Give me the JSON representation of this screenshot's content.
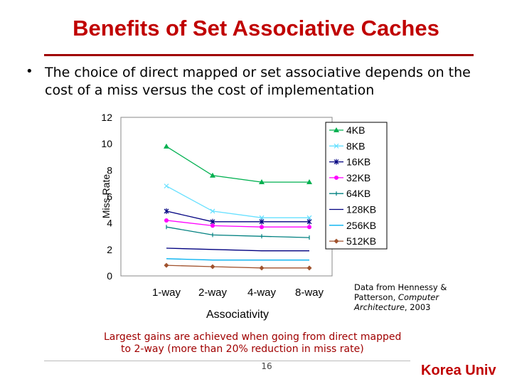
{
  "slide": {
    "title": "Benefits of Set Associative Caches",
    "bullet_marker": "•",
    "bullet_text": "The choice of direct mapped or set associative depends on the cost of a miss versus the cost of implementation",
    "source_line1": "Data from Hennessy &",
    "source_line2_plain": "Patterson, ",
    "source_line2_italic": "Computer",
    "source_line3_italic": "Architecture",
    "source_line3_plain": ", 2003",
    "caption_line1": "Largest gains are achieved when going from direct mapped",
    "caption_line2": "to 2-way (more than 20% reduction in miss rate)",
    "page_number": "16",
    "brand": "Korea Univ"
  },
  "chart_data": {
    "type": "line",
    "categories": [
      "1-way",
      "2-way",
      "4-way",
      "8-way"
    ],
    "xlabel": "Associativity",
    "ylabel": "Miss Rate",
    "ylim": [
      0,
      12
    ],
    "yticks": [
      0,
      2,
      4,
      6,
      8,
      10,
      12
    ],
    "legend_position": "right",
    "grid": false,
    "series": [
      {
        "name": "4KB",
        "values": [
          9.8,
          7.6,
          7.1,
          7.1
        ],
        "color": "#00b050",
        "marker": "triangle"
      },
      {
        "name": "8KB",
        "values": [
          6.8,
          4.9,
          4.4,
          4.4
        ],
        "color": "#66e0ff",
        "marker": "x"
      },
      {
        "name": "16KB",
        "values": [
          4.9,
          4.1,
          4.1,
          4.1
        ],
        "color": "#000080",
        "marker": "star"
      },
      {
        "name": "32KB",
        "values": [
          4.2,
          3.8,
          3.7,
          3.7
        ],
        "color": "#ff00ff",
        "marker": "circle"
      },
      {
        "name": "64KB",
        "values": [
          3.7,
          3.1,
          3.0,
          2.9
        ],
        "color": "#008080",
        "marker": "bar"
      },
      {
        "name": "128KB",
        "values": [
          2.1,
          2.0,
          1.9,
          1.9
        ],
        "color": "#000080",
        "marker": "none"
      },
      {
        "name": "256KB",
        "values": [
          1.3,
          1.2,
          1.2,
          1.2
        ],
        "color": "#00b0f0",
        "marker": "none"
      },
      {
        "name": "512KB",
        "values": [
          0.8,
          0.7,
          0.6,
          0.6
        ],
        "color": "#a0522d",
        "marker": "diamond"
      }
    ]
  }
}
